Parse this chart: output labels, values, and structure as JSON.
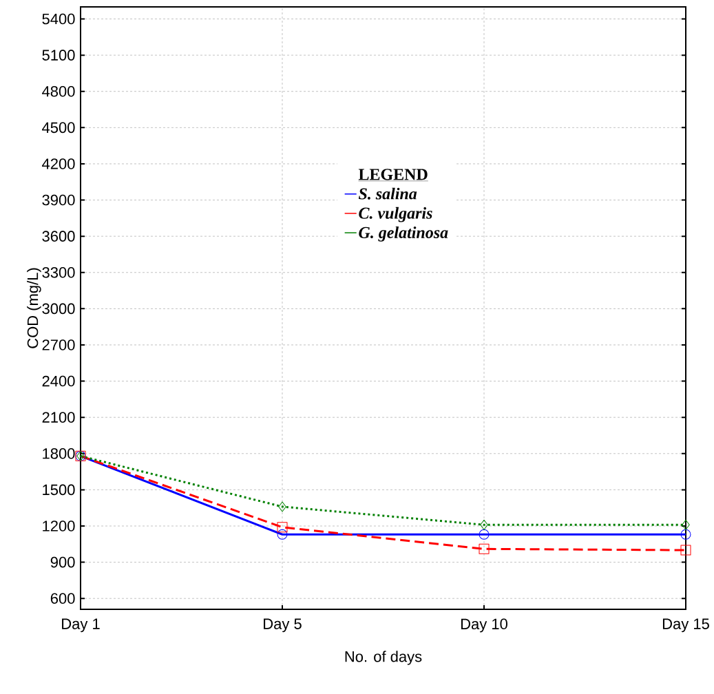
{
  "chart_data": {
    "type": "line",
    "xlabel": "No. of days",
    "ylabel": "COD (mg/L)",
    "legend_title": "**LEGEND**",
    "categories": [
      "Day 1",
      "Day 5",
      "Day 10",
      "Day 15"
    ],
    "series": [
      {
        "name": "*S. salina*",
        "color": "#0000ff",
        "values": [
          1780,
          1130,
          1130,
          1130
        ],
        "marker": "circle",
        "line_style": "solid"
      },
      {
        "name": "*C. vulgaris*",
        "color": "#ff0000",
        "values": [
          1780,
          1190,
          1010,
          1000
        ],
        "marker": "square",
        "line_style": "dashed"
      },
      {
        "name": "*G. gelatinosa*",
        "color": "#008000",
        "values": [
          1780,
          1360,
          1210,
          1210
        ],
        "marker": "diamond",
        "line_style": "dotted"
      }
    ],
    "ylim": [
      510,
      5500
    ],
    "yticks": [
      600,
      900,
      1200,
      1500,
      1800,
      2100,
      2400,
      2700,
      3000,
      3300,
      3600,
      3900,
      4200,
      4500,
      4800,
      5100,
      5400
    ],
    "grid": true,
    "legend": "top"
  }
}
